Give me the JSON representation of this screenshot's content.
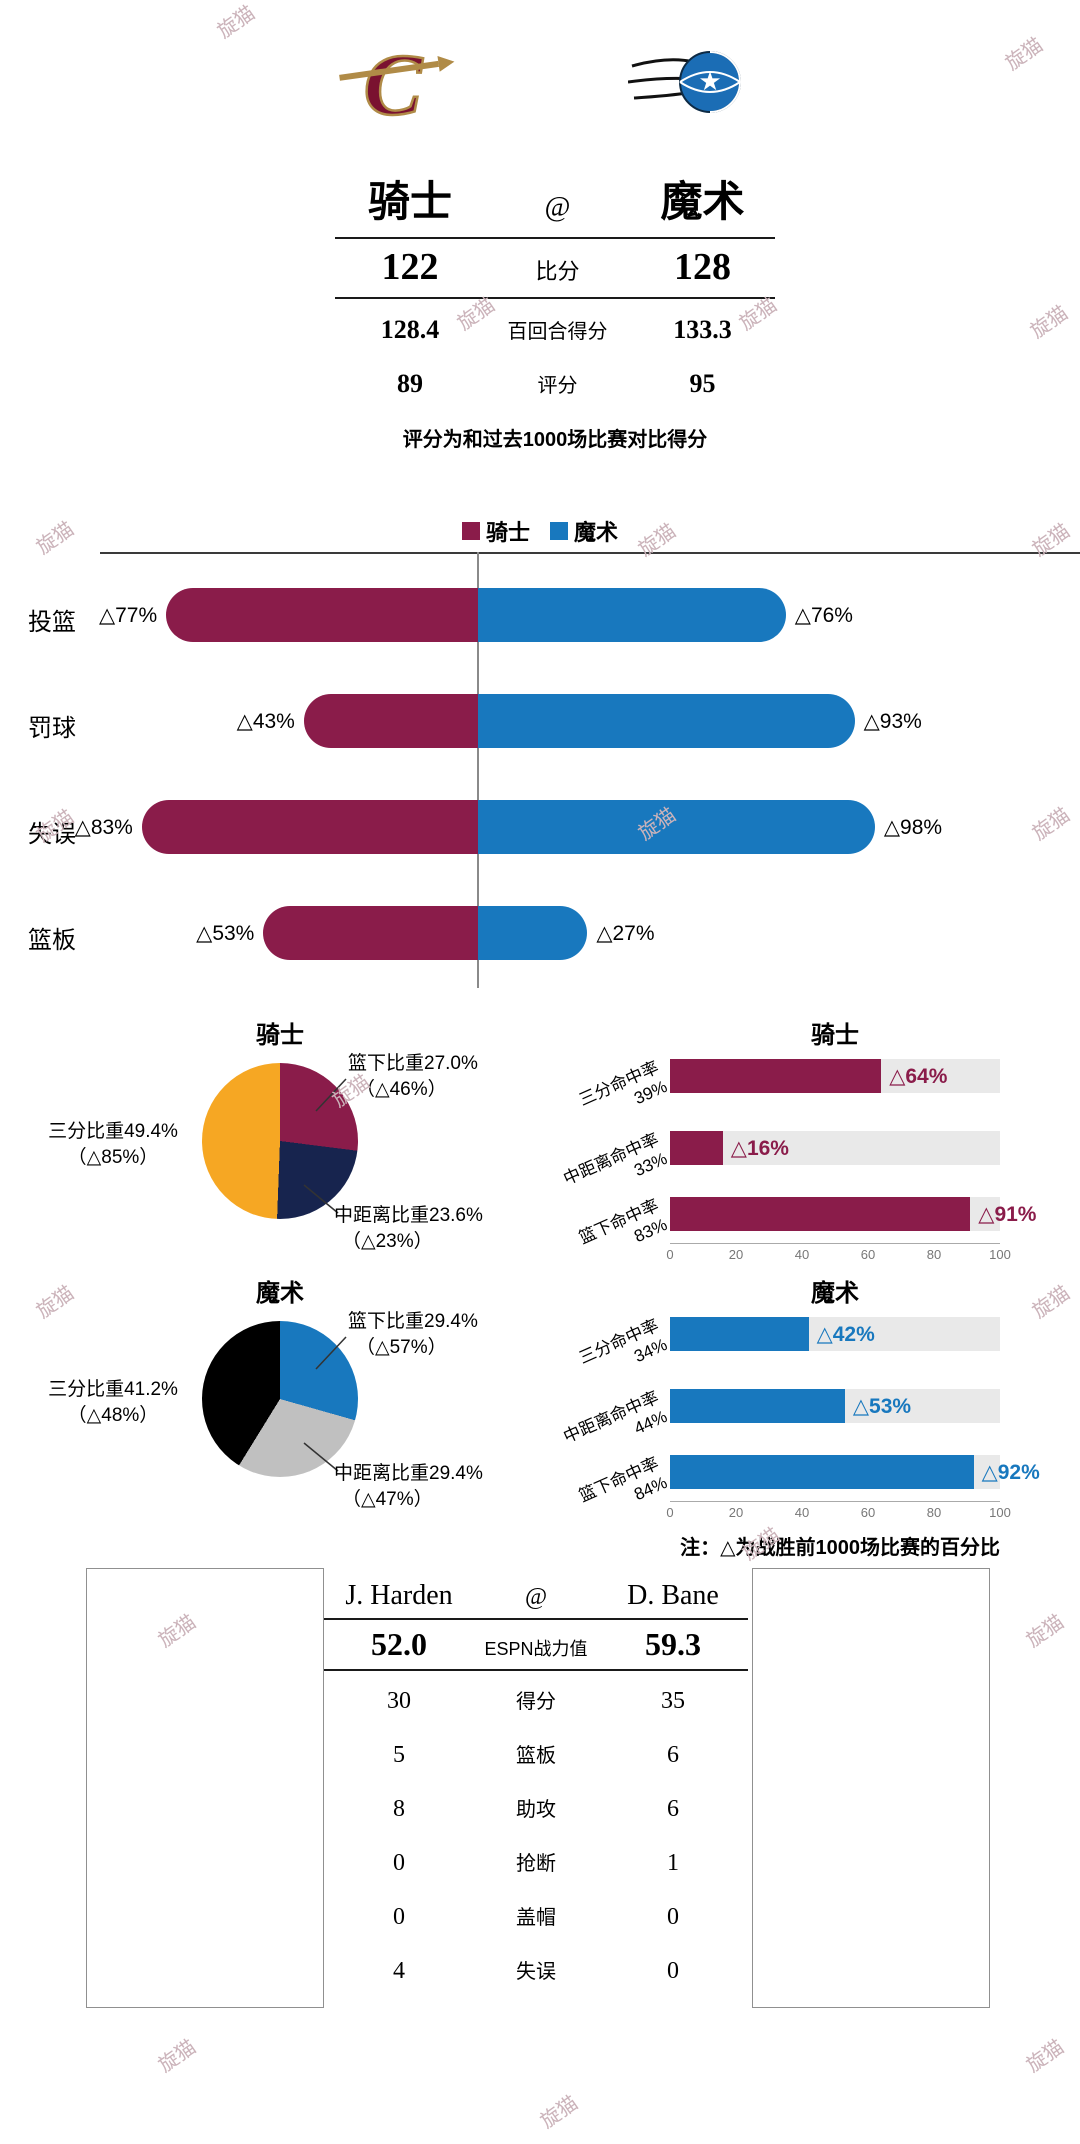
{
  "watermark_text": "旋猫",
  "header": {
    "away_name": "骑士",
    "home_name": "魔术",
    "at": "@",
    "score_away": "122",
    "score_label": "比分",
    "score_home": "128",
    "per100_away": "128.4",
    "per100_label": "百回合得分",
    "per100_home": "133.3",
    "rating_away": "89",
    "rating_label": "评分",
    "rating_home": "95",
    "note": "评分为和过去1000场比赛对比得分"
  },
  "colors": {
    "cavs": "#8a1c4a",
    "magic": "#1878be",
    "orange": "#f6a723",
    "navy": "#17244e",
    "black": "#000000",
    "gray": "#c0c0c0",
    "track": "#e9e9e9"
  },
  "chart_data": [
    {
      "type": "bar",
      "subtype": "diverging",
      "legend": [
        "骑士",
        "魔术"
      ],
      "categories": [
        "投篮",
        "罚球",
        "失误",
        "篮板"
      ],
      "series": [
        {
          "name": "骑士",
          "values": [
            77,
            43,
            83,
            53
          ],
          "labels": [
            "△77%",
            "△43%",
            "△83%",
            "△53%"
          ]
        },
        {
          "name": "魔术",
          "values": [
            76,
            93,
            98,
            27
          ],
          "labels": [
            "△76%",
            "△93%",
            "△98%",
            "△27%"
          ]
        }
      ],
      "xlim": [
        0,
        100
      ]
    },
    {
      "type": "pie",
      "title": "骑士",
      "slices": [
        {
          "label": "篮下比重27.0%",
          "delta": "（△46%）",
          "value": 27.0,
          "color": "#8a1c4a"
        },
        {
          "label": "中距离比重23.6%",
          "delta": "（△23%）",
          "value": 23.6,
          "color": "#17244e"
        },
        {
          "label": "三分比重49.4%",
          "delta": "（△85%）",
          "value": 49.4,
          "color": "#f6a723"
        }
      ]
    },
    {
      "type": "pie",
      "title": "魔术",
      "slices": [
        {
          "label": "篮下比重29.4%",
          "delta": "（△57%）",
          "value": 29.4,
          "color": "#1878be"
        },
        {
          "label": "中距离比重29.4%",
          "delta": "（△47%）",
          "value": 29.4,
          "color": "#c0c0c0"
        },
        {
          "label": "三分比重41.2%",
          "delta": "（△48%）",
          "value": 41.2,
          "color": "#000000"
        }
      ]
    },
    {
      "type": "bar",
      "title": "骑士",
      "color": "#8a1c4a",
      "categories": [
        {
          "name": "三分命中率",
          "pct": "39%"
        },
        {
          "name": "中距离命中率",
          "pct": "33%"
        },
        {
          "name": "篮下命中率",
          "pct": "83%"
        }
      ],
      "values": [
        64,
        16,
        91
      ],
      "labels": [
        "△64%",
        "△16%",
        "△91%"
      ],
      "xticks": [
        "0",
        "20",
        "40",
        "60",
        "80",
        "100"
      ],
      "xlim": [
        0,
        100
      ]
    },
    {
      "type": "bar",
      "title": "魔术",
      "color": "#1878be",
      "categories": [
        {
          "name": "三分命中率",
          "pct": "34%"
        },
        {
          "name": "中距离命中率",
          "pct": "44%"
        },
        {
          "name": "篮下命中率",
          "pct": "84%"
        }
      ],
      "values": [
        42,
        53,
        92
      ],
      "labels": [
        "△42%",
        "△53%",
        "△92%"
      ],
      "xticks": [
        "0",
        "20",
        "40",
        "60",
        "80",
        "100"
      ],
      "xlim": [
        0,
        100
      ]
    }
  ],
  "charts_note": "注：△为战胜前1000场比赛的百分比",
  "players": {
    "away_name": "J. Harden",
    "home_name": "D. Bane",
    "at": "@",
    "power_label": "ESPN战力值",
    "away_power": "52.0",
    "home_power": "59.3",
    "rows": [
      {
        "away": "30",
        "label": "得分",
        "home": "35"
      },
      {
        "away": "5",
        "label": "篮板",
        "home": "6"
      },
      {
        "away": "8",
        "label": "助攻",
        "home": "6"
      },
      {
        "away": "0",
        "label": "抢断",
        "home": "1"
      },
      {
        "away": "0",
        "label": "盖帽",
        "home": "0"
      },
      {
        "away": "4",
        "label": "失误",
        "home": "0"
      }
    ]
  }
}
